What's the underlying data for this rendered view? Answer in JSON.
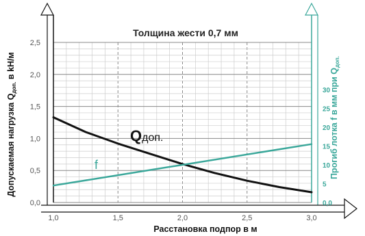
{
  "chart_data": {
    "type": "line",
    "title": "Толщина жести  0,7 мм",
    "xlabel": "Расстановка подпор в м",
    "ylabel_left": {
      "prefix": "Допускаемая нагрузка Q",
      "sub": "доп.",
      "suffix": " в kH/м"
    },
    "ylabel_right": {
      "prefix": "Прогиб лотка f в мм при Q",
      "sub": "доп."
    },
    "xlim": [
      1.0,
      3.0
    ],
    "ylim_left": [
      0.0,
      2.5
    ],
    "ylim_right": [
      0.0,
      42.5
    ],
    "x_ticks": [
      "1,0",
      "1,5",
      "2,0",
      "2,5",
      "3,0"
    ],
    "y_left_ticks": [
      "0,0",
      "0,5",
      "1,0",
      "1,5",
      "2,0",
      "2,5"
    ],
    "y_right_ticks": [
      "0,0",
      "5",
      "10",
      "15",
      "20",
      "25",
      "30"
    ],
    "grid": true,
    "series": [
      {
        "name": "Q",
        "label_main": "Q",
        "label_sub": "доп.",
        "axis": "left",
        "color": "#111111",
        "x": [
          1.0,
          1.25,
          1.5,
          1.75,
          2.0,
          2.25,
          2.5,
          2.75,
          3.0
        ],
        "y": [
          1.33,
          1.1,
          0.92,
          0.76,
          0.6,
          0.46,
          0.34,
          0.24,
          0.16
        ]
      },
      {
        "name": "f",
        "label_main": "f",
        "axis": "right",
        "color": "#3aa79a",
        "x": [
          1.0,
          3.0
        ],
        "y": [
          4.5,
          15.5
        ]
      }
    ],
    "colors": {
      "left_axis": "#111111",
      "right_axis": "#3aa79a",
      "grid_minor": "#cccccc",
      "grid_major": "#888888"
    }
  }
}
